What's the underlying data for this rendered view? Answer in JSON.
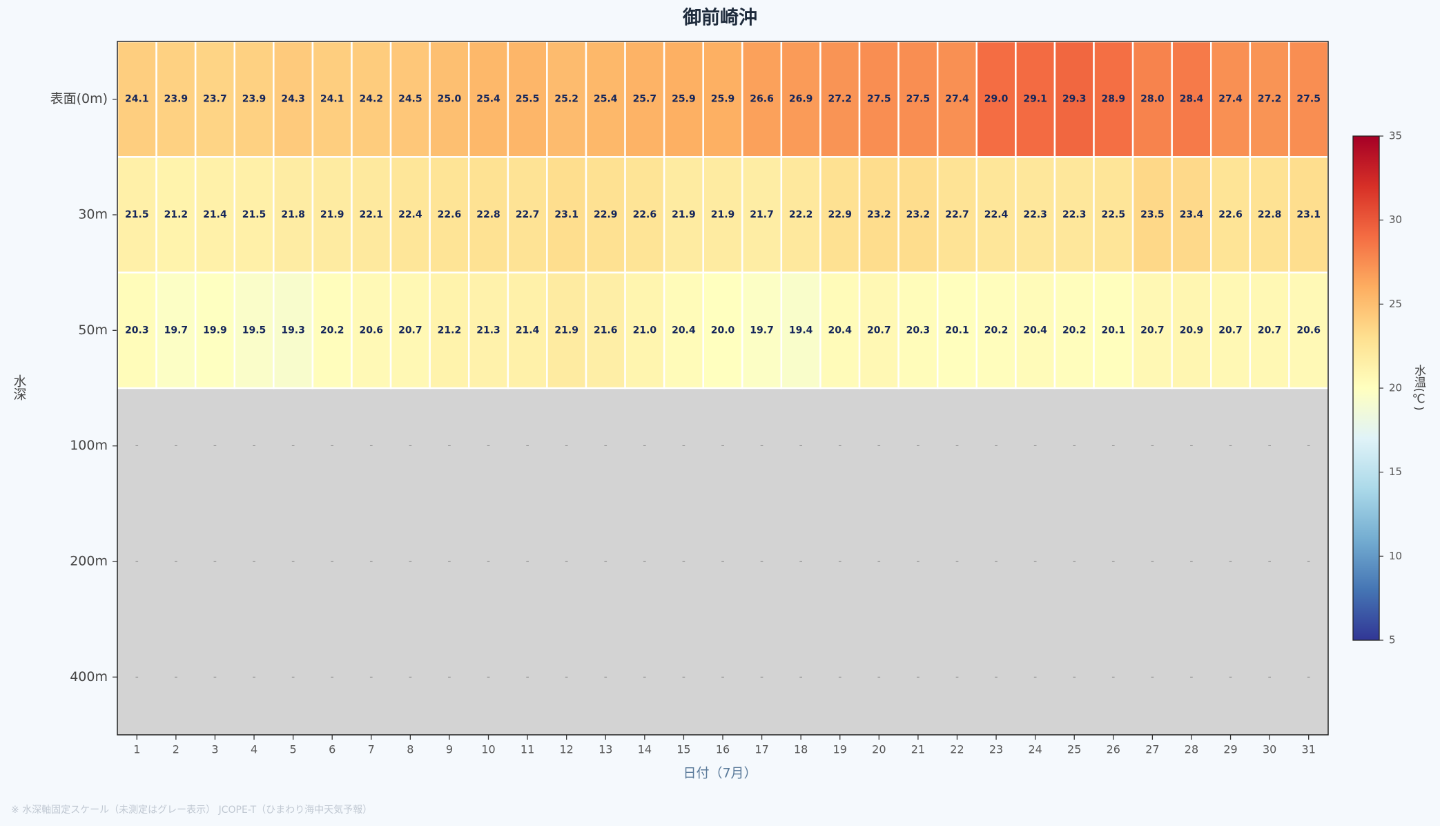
{
  "chart_data": {
    "type": "heatmap",
    "title": "御前崎沖",
    "x_label": "日付（7月）",
    "y_label": "水深",
    "note": "※ 水深軸固定スケール（未測定はグレー表示） JCOPE-T（ひまわり海中天気予報）",
    "categories": [
      "1",
      "2",
      "3",
      "4",
      "5",
      "6",
      "7",
      "8",
      "9",
      "10",
      "11",
      "12",
      "13",
      "14",
      "15",
      "16",
      "17",
      "18",
      "19",
      "20",
      "21",
      "22",
      "23",
      "24",
      "25",
      "26",
      "27",
      "28",
      "29",
      "30",
      "31"
    ],
    "rows": [
      "表面(0m)",
      "30m",
      "50m",
      "100m",
      "200m",
      "400m"
    ],
    "z": [
      [
        24.1,
        23.9,
        23.7,
        23.9,
        24.3,
        24.1,
        24.2,
        24.5,
        25.0,
        25.4,
        25.5,
        25.2,
        25.4,
        25.7,
        25.9,
        25.9,
        26.6,
        26.9,
        27.2,
        27.5,
        27.5,
        27.4,
        29.0,
        29.1,
        29.3,
        28.9,
        28.0,
        28.4,
        27.4,
        27.2,
        27.5
      ],
      [
        21.5,
        21.2,
        21.4,
        21.5,
        21.8,
        21.9,
        22.1,
        22.4,
        22.6,
        22.8,
        22.7,
        23.1,
        22.9,
        22.6,
        21.9,
        21.9,
        21.7,
        22.2,
        22.9,
        23.2,
        23.2,
        22.7,
        22.4,
        22.3,
        22.3,
        22.5,
        23.5,
        23.4,
        22.6,
        22.8,
        23.1
      ],
      [
        20.3,
        19.7,
        19.9,
        19.5,
        19.3,
        20.2,
        20.6,
        20.7,
        21.2,
        21.3,
        21.4,
        21.9,
        21.6,
        21.0,
        20.4,
        20.0,
        19.7,
        19.4,
        20.4,
        20.7,
        20.3,
        20.1,
        20.2,
        20.4,
        20.2,
        20.1,
        20.7,
        20.9,
        20.7,
        20.7,
        20.6
      ],
      [
        null,
        null,
        null,
        null,
        null,
        null,
        null,
        null,
        null,
        null,
        null,
        null,
        null,
        null,
        null,
        null,
        null,
        null,
        null,
        null,
        null,
        null,
        null,
        null,
        null,
        null,
        null,
        null,
        null,
        null,
        null
      ],
      [
        null,
        null,
        null,
        null,
        null,
        null,
        null,
        null,
        null,
        null,
        null,
        null,
        null,
        null,
        null,
        null,
        null,
        null,
        null,
        null,
        null,
        null,
        null,
        null,
        null,
        null,
        null,
        null,
        null,
        null,
        null
      ],
      [
        null,
        null,
        null,
        null,
        null,
        null,
        null,
        null,
        null,
        null,
        null,
        null,
        null,
        null,
        null,
        null,
        null,
        null,
        null,
        null,
        null,
        null,
        null,
        null,
        null,
        null,
        null,
        null,
        null,
        null,
        null
      ]
    ],
    "z_labels": [
      [
        "24.1",
        "23.9",
        "23.7",
        "23.9",
        "24.3",
        "24.1",
        "24.2",
        "24.5",
        "25.0",
        "25.4",
        "25.5",
        "25.2",
        "25.4",
        "25.7",
        "25.9",
        "25.9",
        "26.6",
        "26.9",
        "27.2",
        "27.5",
        "27.5",
        "27.4",
        "29.0",
        "29.1",
        "29.3",
        "28.9",
        "28.0",
        "28.4",
        "27.4",
        "27.2",
        "27.5"
      ],
      [
        "21.5",
        "21.2",
        "21.4",
        "21.5",
        "21.8",
        "21.9",
        "22.1",
        "22.4",
        "22.6",
        "22.8",
        "22.7",
        "23.1",
        "22.9",
        "22.6",
        "21.9",
        "21.9",
        "21.7",
        "22.2",
        "22.9",
        "23.2",
        "23.2",
        "22.7",
        "22.4",
        "22.3",
        "22.3",
        "22.5",
        "23.5",
        "23.4",
        "22.6",
        "22.8",
        "23.1"
      ],
      [
        "20.3",
        "19.7",
        "19.9",
        "19.5",
        "19.3",
        "20.2",
        "20.6",
        "20.7",
        "21.2",
        "21.3",
        "21.4",
        "21.9",
        "21.6",
        "21.0",
        "20.4",
        "20.0",
        "19.7",
        "19.4",
        "20.4",
        "20.7",
        "20.3",
        "20.1",
        "20.2",
        "20.4",
        "20.2",
        "20.1",
        "20.7",
        "20.9",
        "20.7",
        "20.7",
        "20.6"
      ],
      [
        "-",
        "-",
        "-",
        "-",
        "-",
        "-",
        "-",
        "-",
        "-",
        "-",
        "-",
        "-",
        "-",
        "-",
        "-",
        "-",
        "-",
        "-",
        "-",
        "-",
        "-",
        "-",
        "-",
        "-",
        "-",
        "-",
        "-",
        "-",
        "-",
        "-",
        "-"
      ],
      [
        "-",
        "-",
        "-",
        "-",
        "-",
        "-",
        "-",
        "-",
        "-",
        "-",
        "-",
        "-",
        "-",
        "-",
        "-",
        "-",
        "-",
        "-",
        "-",
        "-",
        "-",
        "-",
        "-",
        "-",
        "-",
        "-",
        "-",
        "-",
        "-",
        "-",
        "-"
      ],
      [
        "-",
        "-",
        "-",
        "-",
        "-",
        "-",
        "-",
        "-",
        "-",
        "-",
        "-",
        "-",
        "-",
        "-",
        "-",
        "-",
        "-",
        "-",
        "-",
        "-",
        "-",
        "-",
        "-",
        "-",
        "-",
        "-",
        "-",
        "-",
        "-",
        "-",
        "-"
      ]
    ],
    "colormap": "RdYlBu_r",
    "colorbar": {
      "label": "水温(℃)",
      "lim": [
        5,
        35
      ],
      "ticks": [
        5,
        10,
        15,
        20,
        25,
        30,
        35
      ]
    }
  }
}
